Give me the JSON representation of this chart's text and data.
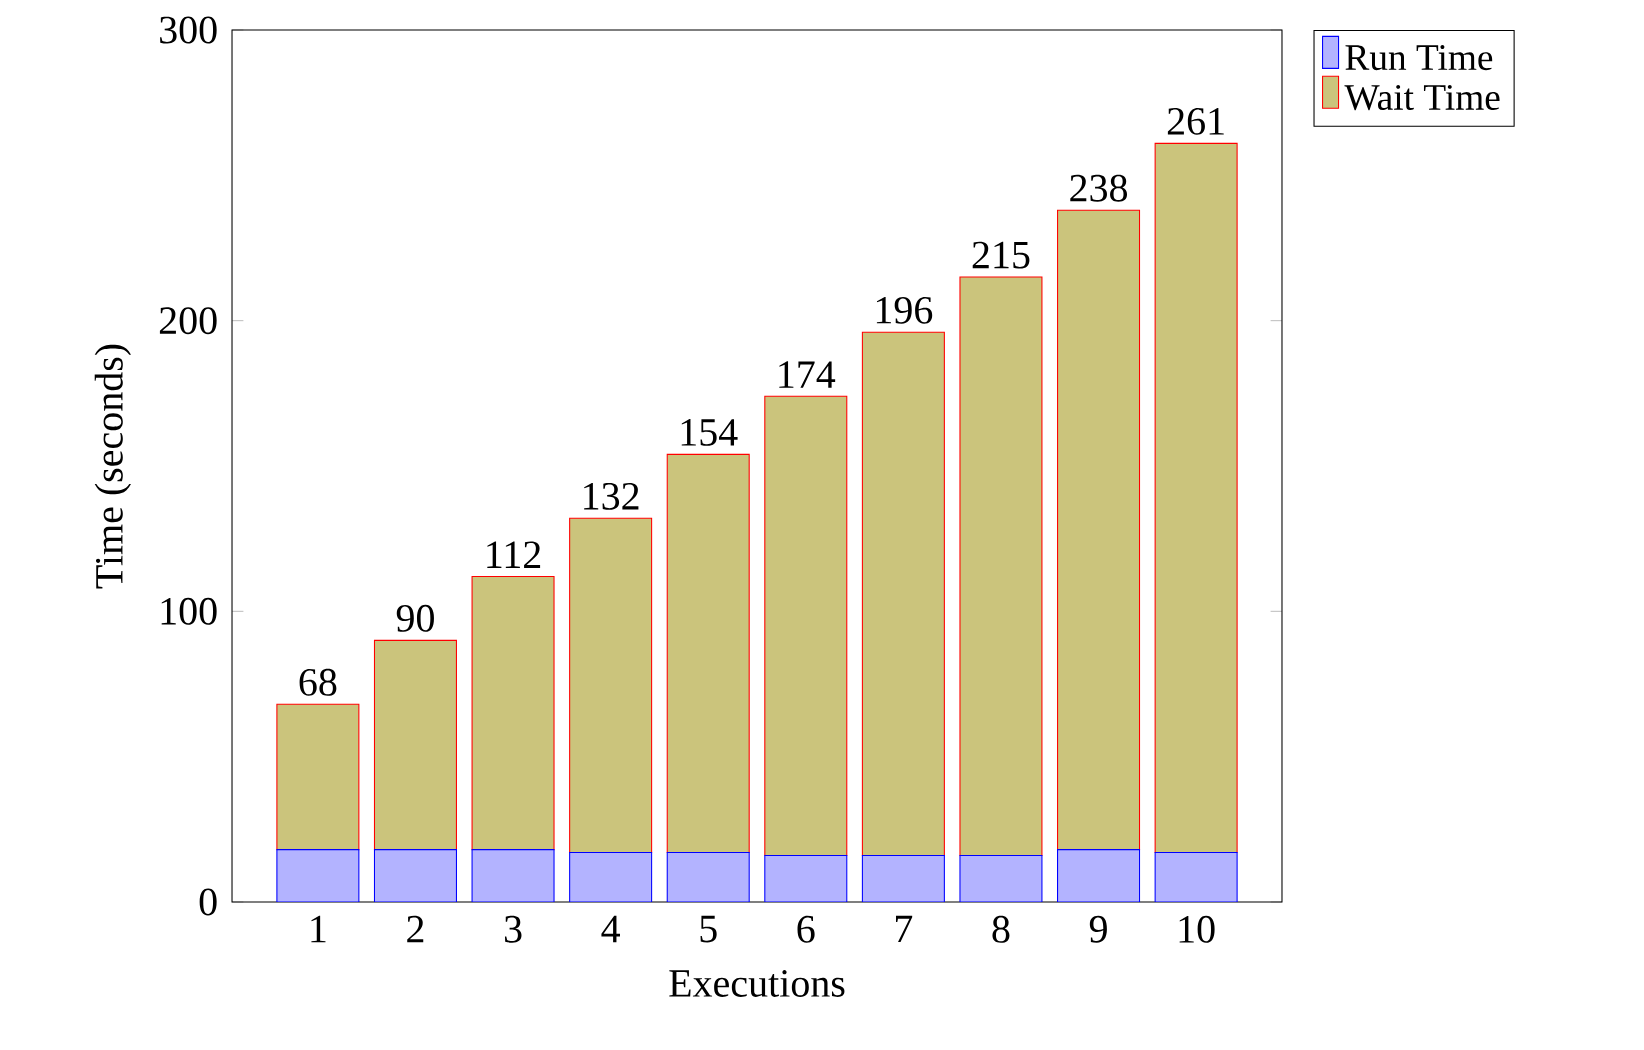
{
  "chart_data": {
    "type": "bar",
    "stacked": true,
    "xlabel": "Executions",
    "ylabel": "Time (seconds)",
    "categories": [
      "1",
      "2",
      "3",
      "4",
      "5",
      "6",
      "7",
      "8",
      "9",
      "10"
    ],
    "series": [
      {
        "name": "Run Time",
        "color": "#b3b3ff",
        "values": [
          18,
          18,
          18,
          17,
          17,
          16,
          16,
          16,
          18,
          17
        ]
      },
      {
        "name": "Wait Time",
        "color": "#cbc47c",
        "values": [
          50,
          72,
          94,
          115,
          137,
          158,
          180,
          199,
          220,
          244
        ]
      }
    ],
    "totals": [
      "68",
      "90",
      "112",
      "132",
      "154",
      "174",
      "196",
      "215",
      "238",
      "261"
    ],
    "ylim": [
      0,
      300
    ],
    "yticks": [
      0,
      100,
      200,
      300
    ],
    "legend": "top right outside",
    "grid": false
  }
}
